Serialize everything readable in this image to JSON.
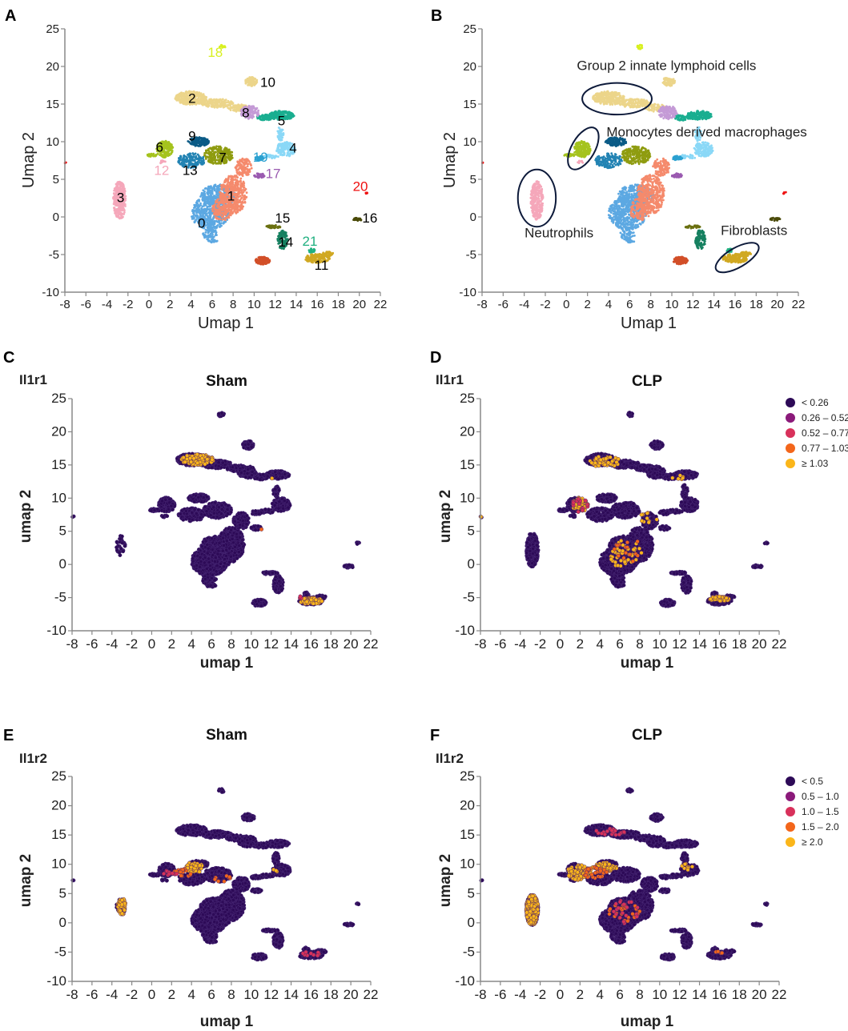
{
  "figure": {
    "colors": {
      "axis": "#888888",
      "expression_levels": [
        "#2d0a57",
        "#8b1a7a",
        "#d8315b",
        "#f3661b",
        "#fbb61a"
      ]
    }
  },
  "chart_data": [
    {
      "id": "A",
      "type": "scatter",
      "letter": "A",
      "xlabel": "Umap 1",
      "ylabel": "Umap 2",
      "xlim": [
        -8,
        22
      ],
      "ylim": [
        -10,
        25
      ],
      "xticks": [
        "-8",
        "-6",
        "-4",
        "-2",
        "0",
        "2",
        "4",
        "6",
        "8",
        "10",
        "12",
        "14",
        "16",
        "18",
        "20",
        "22"
      ],
      "yticks": [
        "25",
        "20",
        "15",
        "10",
        "5",
        "0",
        "-5",
        "-10"
      ],
      "coloring": "cluster",
      "clusters": [
        {
          "id": "0",
          "color": "#5ca8e2",
          "label_color": "#000000",
          "label_pos": [
            5,
            -0.8
          ],
          "blobs": [
            [
              5.8,
              0.5,
              1.8,
              2.2,
              520
            ],
            [
              6.6,
              2.8,
              1.7,
              1.5,
              300
            ],
            [
              5.8,
              -2.2,
              0.7,
              0.9,
              60
            ],
            [
              6,
              -3.2,
              0.5,
              0.2,
              20
            ]
          ]
        },
        {
          "id": "1",
          "color": "#f58a6c",
          "label_color": "#000000",
          "label_pos": [
            7.8,
            2.8
          ],
          "blobs": [
            [
              8,
              3,
              1.3,
              2.6,
              420
            ],
            [
              9,
              6.6,
              0.8,
              1.2,
              120
            ],
            [
              7,
              1,
              1,
              1.5,
              150
            ]
          ]
        },
        {
          "id": "2",
          "color": "#ecd58a",
          "label_color": "#000000",
          "label_pos": [
            4.1,
            15.8
          ],
          "blobs": [
            [
              4,
              15.8,
              1.5,
              0.9,
              300
            ],
            [
              6.5,
              15.1,
              1.5,
              0.6,
              160
            ],
            [
              8.5,
              14.5,
              1,
              0.5,
              80
            ]
          ]
        },
        {
          "id": "3",
          "color": "#f5a7ba",
          "label_color": "#000000",
          "label_pos": [
            -2.7,
            2.6
          ],
          "blobs": [
            [
              -2.8,
              2.2,
              0.6,
              2.6,
              320
            ]
          ]
        },
        {
          "id": "4",
          "color": "#8ad8f7",
          "label_color": "#000000",
          "label_pos": [
            13.7,
            9.2
          ],
          "blobs": [
            [
              13,
              9,
              0.9,
              1,
              160
            ],
            [
              12.5,
              11,
              0.3,
              1,
              40
            ],
            [
              11.5,
              8,
              0.8,
              0.3,
              30
            ]
          ]
        },
        {
          "id": "5",
          "color": "#1aae90",
          "label_color": "#000000",
          "label_pos": [
            12.6,
            12.8
          ],
          "blobs": [
            [
              12.6,
              13.5,
              1.2,
              0.6,
              200
            ],
            [
              11,
              13.2,
              0.8,
              0.4,
              60
            ]
          ]
        },
        {
          "id": "6",
          "color": "#a5c31e",
          "label_color": "#000000",
          "label_pos": [
            1,
            9.3
          ],
          "blobs": [
            [
              1.5,
              9,
              0.8,
              1.1,
              200
            ],
            [
              0.3,
              8.2,
              0.5,
              0.2,
              30
            ]
          ]
        },
        {
          "id": "7",
          "color": "#8f9c10",
          "label_color": "#000000",
          "label_pos": [
            7,
            7.9
          ],
          "blobs": [
            [
              6.6,
              8.2,
              1.4,
              1.2,
              260
            ]
          ]
        },
        {
          "id": "8",
          "color": "#c49ad6",
          "label_color": "#000000",
          "label_pos": [
            9.2,
            13.9
          ],
          "blobs": [
            [
              9.6,
              13.9,
              0.9,
              0.9,
              130
            ]
          ]
        },
        {
          "id": "9",
          "color": "#0b5b86",
          "label_color": "#000000",
          "label_pos": [
            4.1,
            10.8
          ],
          "blobs": [
            [
              4.7,
              10,
              1,
              0.6,
              160
            ]
          ]
        },
        {
          "id": "10",
          "color": "#ecd58a",
          "label_color": "#000000",
          "label_pos": [
            11.3,
            17.9
          ],
          "blobs": [
            [
              9.7,
              18,
              0.6,
              0.6,
              80
            ]
          ]
        },
        {
          "id": "11",
          "color": "#d0a822",
          "label_color": "#000000",
          "label_pos": [
            16.4,
            -6.4
          ],
          "blobs": [
            [
              16,
              -5.5,
              1.2,
              0.6,
              160
            ],
            [
              17,
              -4.9,
              0.5,
              0.3,
              40
            ]
          ]
        },
        {
          "id": "12",
          "color": "#f5a7ba",
          "label_color": "#f5a7ba",
          "label_pos": [
            1.2,
            6.2
          ],
          "blobs": [
            [
              1.3,
              7.3,
              0.3,
              0.2,
              10
            ]
          ]
        },
        {
          "id": "13",
          "color": "#2283b3",
          "label_color": "#000000",
          "label_pos": [
            3.9,
            6.2
          ],
          "blobs": [
            [
              4,
              7.5,
              1.3,
              1,
              160
            ]
          ]
        },
        {
          "id": "14",
          "color": "#168060",
          "label_color": "#000000",
          "label_pos": [
            13,
            -3.3
          ],
          "blobs": [
            [
              12.7,
              -3,
              0.5,
              1.3,
              110
            ]
          ]
        },
        {
          "id": "15",
          "color": "#6a7010",
          "label_color": "#000000",
          "label_pos": [
            12.7,
            -0.1
          ],
          "blobs": [
            [
              11.9,
              -1.3,
              0.8,
              0.2,
              40
            ]
          ]
        },
        {
          "id": "16",
          "color": "#4a4a08",
          "label_color": "#000000",
          "label_pos": [
            21,
            -0.1
          ],
          "blobs": [
            [
              19.8,
              -0.3,
              0.5,
              0.2,
              25
            ]
          ]
        },
        {
          "id": "17",
          "color": "#9a5ab0",
          "label_color": "#9a5ab0",
          "label_pos": [
            11.8,
            5.8
          ],
          "blobs": [
            [
              10.5,
              5.5,
              0.5,
              0.3,
              40
            ]
          ]
        },
        {
          "id": "18",
          "color": "#d8f020",
          "label_color": "#d8f020",
          "label_pos": [
            6.3,
            21.9
          ],
          "blobs": [
            [
              7,
              22.6,
              0.3,
              0.3,
              15
            ]
          ]
        },
        {
          "id": "19",
          "color": "#2aa0d0",
          "label_color": "#2aa0d0",
          "label_pos": [
            10.6,
            8
          ],
          "blobs": [
            [
              10.5,
              7.8,
              0.5,
              0.3,
              30
            ]
          ]
        },
        {
          "id": "20",
          "color": "#ee1111",
          "label_color": "#ee1111",
          "label_pos": [
            20.1,
            4.1
          ],
          "blobs": [
            [
              20.7,
              3.2,
              0.15,
              0.15,
              6
            ],
            [
              -7.9,
              7.2,
              0.1,
              0.1,
              2
            ]
          ]
        },
        {
          "id": "21",
          "color": "#20b080",
          "label_color": "#20b080",
          "label_pos": [
            15.3,
            -3.2
          ],
          "blobs": [
            [
              15.5,
              -4.5,
              0.3,
              0.3,
              20
            ]
          ]
        },
        {
          "id": "",
          "color": "#d24f28",
          "label_color": "#000000",
          "label_pos": null,
          "blobs": [
            [
              10.8,
              -5.8,
              0.7,
              0.5,
              110
            ]
          ]
        }
      ]
    },
    {
      "id": "B",
      "type": "scatter",
      "letter": "B",
      "xlabel": "Umap 1",
      "ylabel": "Umap 2",
      "xlim": [
        -8,
        22
      ],
      "ylim": [
        -10,
        25
      ],
      "xticks": [
        "-8",
        "-6",
        "-4",
        "-2",
        "0",
        "2",
        "4",
        "6",
        "8",
        "10",
        "12",
        "14",
        "16",
        "18",
        "20",
        "22"
      ],
      "yticks": [
        "25",
        "20",
        "15",
        "10",
        "5",
        "0",
        "-5",
        "-10"
      ],
      "coloring": "cluster",
      "annotations": [
        {
          "text": "Group 2 innate lymphoid cells",
          "pos": [
            9.5,
            19.5
          ],
          "anchor": "middle",
          "ellipse": [
            4.8,
            15.7,
            3.3,
            2.1,
            0
          ]
        },
        {
          "text": "Monocytes derived macrophages",
          "pos": [
            3.8,
            10.7
          ],
          "anchor": "start",
          "ellipse": [
            1.6,
            9.1,
            1.1,
            3.1,
            30
          ]
        },
        {
          "text": "Neutrophils",
          "pos": [
            -0.7,
            -2.7
          ],
          "anchor": "middle",
          "ellipse": [
            -2.8,
            2.5,
            1.8,
            3.8,
            0
          ]
        },
        {
          "text": "Fibroblasts",
          "pos": [
            17.8,
            -2.4
          ],
          "anchor": "middle",
          "ellipse": [
            16.2,
            -5.4,
            2.3,
            1.3,
            -30
          ]
        }
      ]
    },
    {
      "id": "C",
      "type": "scatter",
      "letter": "C",
      "gene": "Il1r1",
      "title": "Sham",
      "xlabel": "umap 1",
      "ylabel": "umap 2",
      "xlim": [
        -8,
        22
      ],
      "ylim": [
        -10,
        25
      ],
      "xticks": [
        "-8",
        "-6",
        "-4",
        "-2",
        "0",
        "2",
        "4",
        "6",
        "8",
        "10",
        "12",
        "14",
        "16",
        "18",
        "20",
        "22"
      ],
      "yticks": [
        "25",
        "20",
        "15",
        "10",
        "5",
        "0",
        "-5",
        "-10"
      ],
      "coloring": "expression",
      "sparse_cluster_3": true,
      "highlights": [
        [
          4.6,
          15.8,
          1.6,
          0.8,
          150,
          4
        ],
        [
          16,
          -5.5,
          1.1,
          0.5,
          90,
          4
        ],
        [
          15,
          -5,
          0.3,
          0.2,
          4,
          2
        ],
        [
          12,
          13,
          0.1,
          0.1,
          1,
          4
        ],
        [
          11,
          5.3,
          0.1,
          0.1,
          1,
          3
        ]
      ]
    },
    {
      "id": "D",
      "type": "scatter",
      "letter": "D",
      "gene": "Il1r1",
      "title": "CLP",
      "xlabel": "umap 1",
      "ylabel": "umap 2",
      "xlim": [
        -8,
        22
      ],
      "ylim": [
        -10,
        25
      ],
      "xticks": [
        "-8",
        "-6",
        "-4",
        "-2",
        "0",
        "2",
        "4",
        "6",
        "8",
        "10",
        "12",
        "14",
        "16",
        "18",
        "20",
        "22"
      ],
      "yticks": [
        "25",
        "20",
        "15",
        "10",
        "5",
        "0",
        "-5",
        "-10"
      ],
      "coloring": "expression",
      "legend": {
        "items": [
          "< 0.26",
          "0.26 – 0.52",
          "0.52 – 0.77",
          "0.77 – 1.03",
          "≥ 1.03"
        ],
        "placement": "top-right"
      },
      "highlights": [
        [
          4.5,
          15.5,
          1.6,
          0.8,
          50,
          4
        ],
        [
          2,
          9,
          0.8,
          1.1,
          40,
          4
        ],
        [
          2,
          9,
          0.8,
          1.1,
          15,
          2
        ],
        [
          6.6,
          1.5,
          1.6,
          2.2,
          45,
          4
        ],
        [
          7,
          2,
          1.6,
          2.2,
          15,
          3
        ],
        [
          16,
          -5.2,
          1,
          0.4,
          50,
          4
        ],
        [
          -7.9,
          7.2,
          0.1,
          0.1,
          1,
          4
        ],
        [
          9,
          7,
          1,
          1,
          10,
          4
        ],
        [
          12,
          13,
          1,
          0.5,
          6,
          4
        ]
      ]
    },
    {
      "id": "E",
      "type": "scatter",
      "letter": "E",
      "gene": "Il1r2",
      "title": "Sham",
      "xlabel": "umap 1",
      "ylabel": "umap 2",
      "xlim": [
        -8,
        22
      ],
      "ylim": [
        -10,
        25
      ],
      "xticks": [
        "-8",
        "-6",
        "-4",
        "-2",
        "0",
        "2",
        "4",
        "6",
        "8",
        "10",
        "12",
        "14",
        "16",
        "18",
        "20",
        "22"
      ],
      "yticks": [
        "25",
        "20",
        "15",
        "10",
        "5",
        "0",
        "-5",
        "-10"
      ],
      "coloring": "expression",
      "sparse_cluster_3": true,
      "highlights": [
        [
          -3,
          2.8,
          0.4,
          1.4,
          40,
          4
        ],
        [
          4.3,
          9.5,
          0.8,
          1,
          40,
          4
        ],
        [
          3,
          8.5,
          1,
          0.8,
          20,
          3
        ],
        [
          2,
          8.5,
          0.8,
          0.5,
          12,
          2
        ],
        [
          7,
          7.5,
          1,
          0.7,
          8,
          3
        ],
        [
          16,
          -5.3,
          1,
          0.4,
          12,
          2
        ],
        [
          12.5,
          9,
          0.3,
          0.3,
          3,
          4
        ]
      ]
    },
    {
      "id": "F",
      "type": "scatter",
      "letter": "F",
      "gene": "Il1r2",
      "title": "CLP",
      "xlabel": "umap 1",
      "ylabel": "umap 2",
      "xlim": [
        -8,
        22
      ],
      "ylim": [
        -10,
        25
      ],
      "xticks": [
        "-8",
        "-6",
        "-4",
        "-2",
        "0",
        "2",
        "4",
        "6",
        "8",
        "10",
        "12",
        "14",
        "16",
        "18",
        "20",
        "22"
      ],
      "yticks": [
        "25",
        "20",
        "15",
        "10",
        "5",
        "0",
        "-5",
        "-10"
      ],
      "coloring": "expression",
      "legend": {
        "items": [
          "< 0.5",
          "0.5 – 1.0",
          "1.0 – 1.5",
          "1.5 – 2.0",
          "≥ 2.0"
        ],
        "placement": "top-right"
      },
      "highlights": [
        [
          -2.8,
          2.2,
          0.6,
          2.6,
          330,
          4
        ],
        [
          2,
          8.6,
          1.3,
          1.3,
          90,
          4
        ],
        [
          4.5,
          9.5,
          1.3,
          0.8,
          70,
          4
        ],
        [
          3.5,
          8.5,
          1.2,
          1,
          30,
          3
        ],
        [
          6.5,
          1.8,
          1.6,
          2.1,
          30,
          3
        ],
        [
          6.5,
          1.8,
          1.6,
          2.1,
          20,
          2
        ],
        [
          5,
          15.5,
          1.5,
          0.6,
          20,
          2
        ],
        [
          12.8,
          9.5,
          0.6,
          0.6,
          10,
          4
        ],
        [
          16,
          -5,
          0.4,
          0.3,
          5,
          3
        ]
      ]
    }
  ]
}
